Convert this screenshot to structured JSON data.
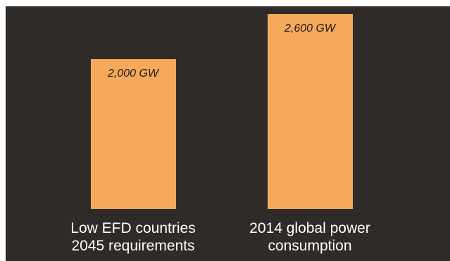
{
  "colors": {
    "background": "#2f2b28",
    "bar": "#f4a95b",
    "label_text": "#ffffff",
    "value_text": "#1e1a17"
  },
  "chart_data": {
    "type": "bar",
    "categories": [
      "Low EFD countries\n2045 requirements",
      "2014 global power\nconsumption"
    ],
    "values": [
      2000,
      2600
    ],
    "value_labels": [
      "2,000 GW",
      "2,600 GW"
    ],
    "unit": "GW",
    "title": "",
    "xlabel": "",
    "ylabel": "",
    "ylim": [
      0,
      2700
    ],
    "grid": false,
    "legend": "none"
  }
}
